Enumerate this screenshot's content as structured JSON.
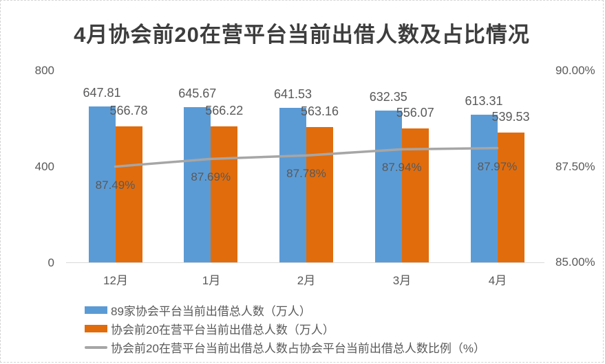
{
  "chart_data": {
    "type": "bar",
    "title": "4月协会前20在营平台当前出借人数及占比情况",
    "categories": [
      "12月",
      "1月",
      "2月",
      "3月",
      "4月"
    ],
    "series": [
      {
        "name": "89家协会平台当前出借总人数（万人）",
        "type": "bar",
        "axis": "left",
        "color": "#5B9BD5",
        "values": [
          647.81,
          645.67,
          641.53,
          632.35,
          613.31
        ],
        "labels": [
          "647.81",
          "645.67",
          "641.53",
          "632.35",
          "613.31"
        ]
      },
      {
        "name": "协会前20在营平台当前出借总人数（万人）",
        "type": "bar",
        "axis": "left",
        "color": "#E16C0C",
        "values": [
          566.78,
          566.22,
          563.16,
          556.07,
          539.53
        ],
        "labels": [
          "566.78",
          "566.22",
          "563.16",
          "556.07",
          "539.53"
        ]
      },
      {
        "name": "协会前20在营平台当前出借总人数占协会平台当前出借总人数比例（%）",
        "type": "line",
        "axis": "right",
        "color": "#A6A6A6",
        "values": [
          87.49,
          87.69,
          87.78,
          87.94,
          87.97
        ],
        "labels": [
          "87.49%",
          "87.69%",
          "87.78%",
          "87.94%",
          "87.97%"
        ]
      }
    ],
    "left_axis": {
      "min": 0,
      "max": 800,
      "ticks": [
        "800",
        "400",
        "0"
      ],
      "tick_values": [
        800,
        400,
        0
      ]
    },
    "right_axis": {
      "min": 85,
      "max": 90,
      "ticks": [
        "90.00%",
        "87.50%",
        "85.00%"
      ],
      "tick_values": [
        90,
        87.5,
        85
      ]
    },
    "grid": false,
    "legend_position": "bottom-left",
    "colors": {
      "axis_text": "#595959",
      "axis_line": "#d9d9d9",
      "title_text": "#3d3d3d"
    }
  }
}
